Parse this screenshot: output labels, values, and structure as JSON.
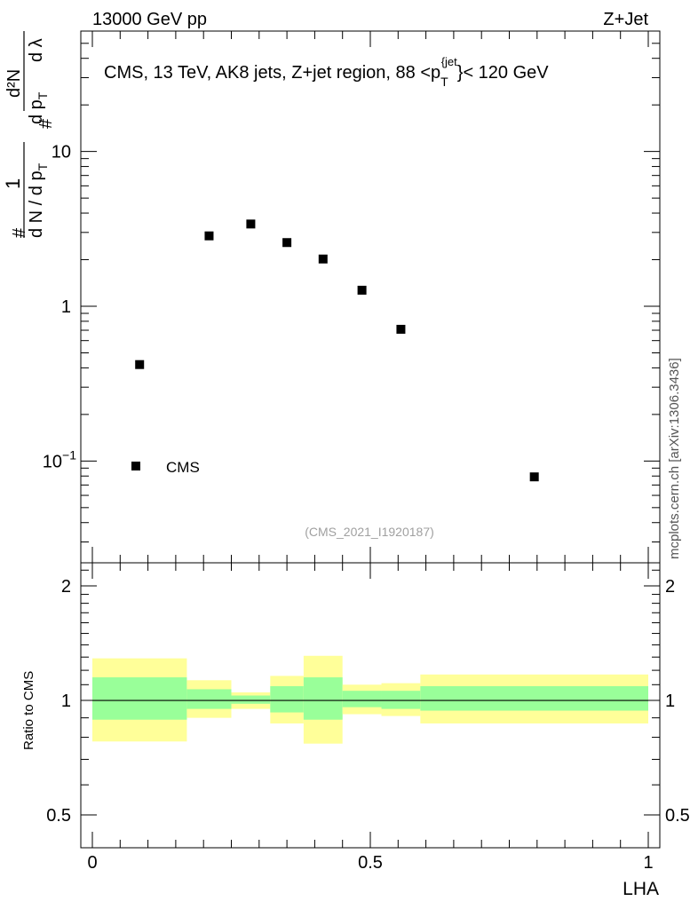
{
  "header": {
    "left": "13000 GeV pp",
    "right": "Z+Jet"
  },
  "side_label": "mcplots.cern.ch [arXiv:1306.3436]",
  "watermark": "(CMS_2021_I1920187)",
  "ylabel_main": {
    "frac_hash": "#",
    "frac_num": "1",
    "frac_den": "d N / d p",
    "frac_den_sub": "T",
    "frac_hash2": "#",
    "d2n": "d²N",
    "dpt": "d p",
    "dpt_sub": "T",
    "dlam": "d λ"
  },
  "chart_data": [
    {
      "type": "scatter",
      "panel": "main",
      "title_prefix": "CMS, 13 TeV, AK8 jets, Z+jet region, 88 <p",
      "title_sub": "T",
      "title_sup": "{jet",
      "title_suffix": "}< 120 GeV",
      "xlabel": "LHA",
      "yscale": "log",
      "xlim": [
        0,
        1
      ],
      "ylim": [
        0.022,
        60
      ],
      "y_ticks": [
        {
          "value": 0.1,
          "base": "10",
          "exp": "−1"
        },
        {
          "value": 1,
          "base": "1",
          "exp": ""
        },
        {
          "value": 10,
          "base": "10",
          "exp": ""
        }
      ],
      "series": [
        {
          "name": "CMS",
          "marker": "square",
          "color": "#000000",
          "x": [
            0.085,
            0.21,
            0.285,
            0.35,
            0.415,
            0.485,
            0.555
          ],
          "y": [
            0.42,
            2.85,
            3.4,
            2.58,
            2.02,
            1.27,
            0.71
          ]
        }
      ],
      "legend": {
        "label": "CMS",
        "position": "bottom-left"
      },
      "extra_marker": {
        "x": 0.795,
        "y": 0.079
      }
    },
    {
      "type": "area",
      "panel": "ratio",
      "ylabel": "Ratio to CMS",
      "xlabel": "LHA",
      "yscale": "log",
      "xlim": [
        0,
        1
      ],
      "ylim": [
        0.41,
        2.3
      ],
      "y_ticks": [
        0.5,
        1,
        2
      ],
      "x_ticks": [
        0,
        0.5,
        1
      ],
      "x_tick_labels": [
        "0",
        "0.5",
        "1"
      ],
      "reference_line": 1,
      "bins": [
        {
          "lo": 0.0,
          "hi": 0.17,
          "stat": [
            0.89,
            1.15
          ],
          "total": [
            0.78,
            1.29
          ]
        },
        {
          "lo": 0.17,
          "hi": 0.25,
          "stat": [
            0.95,
            1.07
          ],
          "total": [
            0.9,
            1.13
          ]
        },
        {
          "lo": 0.25,
          "hi": 0.32,
          "stat": [
            0.98,
            1.03
          ],
          "total": [
            0.95,
            1.05
          ]
        },
        {
          "lo": 0.32,
          "hi": 0.38,
          "stat": [
            0.93,
            1.09
          ],
          "total": [
            0.87,
            1.16
          ]
        },
        {
          "lo": 0.38,
          "hi": 0.45,
          "stat": [
            0.89,
            1.15
          ],
          "total": [
            0.77,
            1.31
          ]
        },
        {
          "lo": 0.45,
          "hi": 0.52,
          "stat": [
            0.96,
            1.06
          ],
          "total": [
            0.92,
            1.1
          ]
        },
        {
          "lo": 0.52,
          "hi": 0.59,
          "stat": [
            0.95,
            1.06
          ],
          "total": [
            0.91,
            1.11
          ]
        },
        {
          "lo": 0.59,
          "hi": 1.0,
          "stat": [
            0.94,
            1.09
          ],
          "total": [
            0.87,
            1.17
          ]
        }
      ],
      "colors": {
        "stat": "#99ff99",
        "total": "#ffff99",
        "line": "#000000"
      }
    }
  ]
}
